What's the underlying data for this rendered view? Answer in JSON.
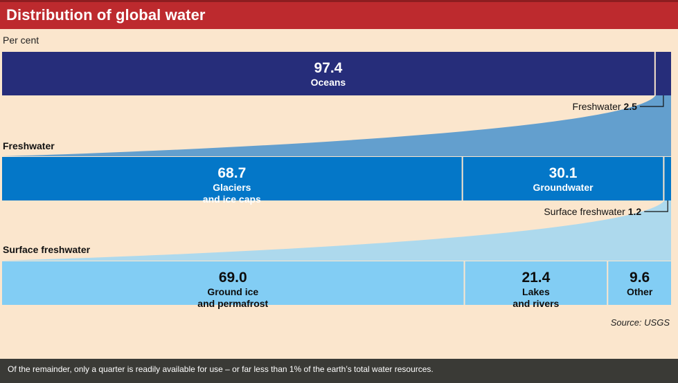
{
  "header": {
    "title": "Distribution of global water",
    "unit": "Per cent"
  },
  "colors": {
    "title_bg": "#bd2a2e",
    "background": "#fbe6cd",
    "level1": "#262d7a",
    "level2": "#0477c8",
    "level3": "#82cdf4",
    "connector1": "#5b9bcd",
    "connector2": "#a9d8ee",
    "footer_bg": "#3a3a36"
  },
  "chart_data": {
    "type": "bar",
    "title": "Distribution of global water",
    "unit": "Per cent",
    "levels": [
      {
        "heading": "",
        "segments": [
          {
            "value": 97.4,
            "value_label": "97.4",
            "label_lines": [
              "Oceans"
            ]
          },
          {
            "value": 2.5,
            "value_label": "",
            "label_lines": []
          }
        ],
        "callout": {
          "text": "Freshwater",
          "value": "2.5"
        }
      },
      {
        "heading": "Freshwater",
        "segments": [
          {
            "value": 68.7,
            "value_label": "68.7",
            "label_lines": [
              "Glaciers",
              "and ice caps"
            ]
          },
          {
            "value": 30.1,
            "value_label": "30.1",
            "label_lines": [
              "Groundwater"
            ]
          },
          {
            "value": 1.2,
            "value_label": "",
            "label_lines": []
          }
        ],
        "callout": {
          "text": "Surface freshwater",
          "value": "1.2"
        }
      },
      {
        "heading": "Surface freshwater",
        "segments": [
          {
            "value": 69.0,
            "value_label": "69.0",
            "label_lines": [
              "Ground ice",
              "and permafrost"
            ]
          },
          {
            "value": 21.4,
            "value_label": "21.4",
            "label_lines": [
              "Lakes",
              "and rivers"
            ]
          },
          {
            "value": 9.6,
            "value_label": "9.6",
            "label_lines": [
              "Other"
            ]
          }
        ],
        "callout": null
      }
    ]
  },
  "source": "Source: USGS",
  "footer": {
    "note": "Of the remainder, only a quarter is readily available for use – or far less than 1% of the earth’s total water resources."
  }
}
